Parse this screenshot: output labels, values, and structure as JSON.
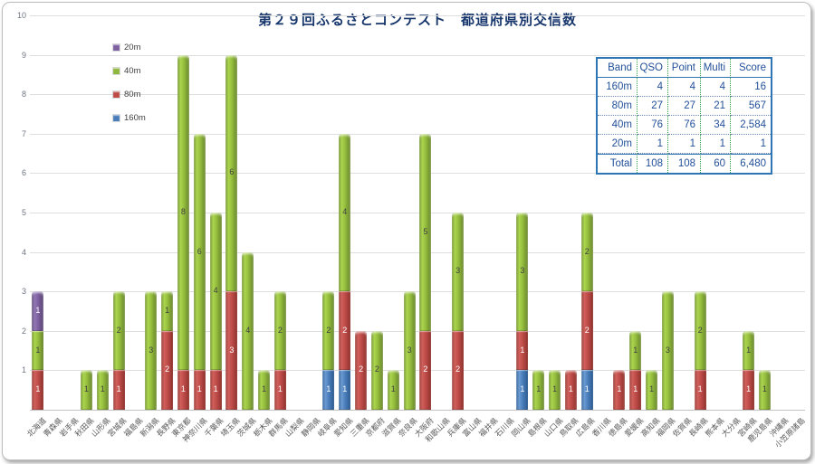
{
  "title": "第２９回ふるさとコンテスト　都道府県別交信数",
  "legend": {
    "position": "top-left",
    "items": [
      {
        "label": "20m",
        "color": "#7d60a0"
      },
      {
        "label": "40m",
        "color": "#8fb73e"
      },
      {
        "label": "80m",
        "color": "#be4b48"
      },
      {
        "label": "160m",
        "color": "#4a7ebb"
      }
    ]
  },
  "summary_table": {
    "headers": [
      "Band",
      "QSO",
      "Point",
      "Multi",
      "Score"
    ],
    "rows": [
      [
        "160m",
        "4",
        "4",
        "4",
        "16"
      ],
      [
        "80m",
        "27",
        "27",
        "21",
        "567"
      ],
      [
        "40m",
        "76",
        "76",
        "34",
        "2,584"
      ],
      [
        "20m",
        "1",
        "1",
        "1",
        "1"
      ],
      [
        "Total",
        "108",
        "108",
        "60",
        "6,480"
      ]
    ]
  },
  "chart_data": {
    "type": "bar",
    "stacked": true,
    "grid": true,
    "ylim": [
      0,
      10
    ],
    "yticks": [
      1,
      2,
      3,
      4,
      5,
      6,
      7,
      8,
      9,
      10
    ],
    "stack_order_bottom_to_top": [
      "160m",
      "80m",
      "40m",
      "20m"
    ],
    "categories": [
      "北海道",
      "青森県",
      "岩手県",
      "秋田県",
      "山形県",
      "宮城県",
      "福島県",
      "新潟県",
      "長野県",
      "東京都",
      "神奈川県",
      "千葉県",
      "埼玉県",
      "茨城県",
      "栃木県",
      "群馬県",
      "山梨県",
      "静岡県",
      "岐阜県",
      "愛知県",
      "三重県",
      "京都府",
      "滋賀県",
      "奈良県",
      "大阪府",
      "和歌山県",
      "兵庫県",
      "富山県",
      "福井県",
      "石川県",
      "岡山県",
      "島根県",
      "山口県",
      "鳥取県",
      "広島県",
      "香川県",
      "徳島県",
      "愛媛県",
      "高知県",
      "福岡県",
      "佐賀県",
      "長崎県",
      "熊本県",
      "大分県",
      "宮崎県",
      "鹿児島県",
      "沖縄県",
      "小笠原諸島"
    ],
    "series": [
      {
        "name": "160m",
        "color": "#4a7ebb",
        "label_color": "#ffffff",
        "values": [
          0,
          0,
          0,
          0,
          0,
          0,
          0,
          0,
          0,
          0,
          0,
          0,
          0,
          0,
          0,
          0,
          0,
          0,
          1,
          1,
          0,
          0,
          0,
          0,
          0,
          0,
          0,
          0,
          0,
          0,
          1,
          0,
          0,
          0,
          1,
          0,
          0,
          0,
          0,
          0,
          0,
          0,
          0,
          0,
          0,
          0,
          0,
          0
        ]
      },
      {
        "name": "80m",
        "color": "#be4b48",
        "label_color": "#ffffff",
        "values": [
          1,
          0,
          0,
          0,
          0,
          1,
          0,
          0,
          2,
          1,
          1,
          1,
          3,
          0,
          0,
          1,
          0,
          0,
          0,
          2,
          2,
          0,
          0,
          0,
          2,
          0,
          2,
          0,
          0,
          0,
          1,
          0,
          0,
          1,
          2,
          0,
          1,
          1,
          0,
          0,
          0,
          1,
          0,
          0,
          1,
          0,
          0,
          0
        ]
      },
      {
        "name": "40m",
        "color": "#8fb73e",
        "label_color": "#404040",
        "values": [
          1,
          0,
          0,
          1,
          1,
          2,
          0,
          3,
          1,
          8,
          6,
          4,
          6,
          4,
          1,
          2,
          0,
          0,
          2,
          4,
          0,
          2,
          1,
          3,
          5,
          0,
          3,
          0,
          0,
          0,
          3,
          1,
          1,
          0,
          2,
          0,
          0,
          1,
          1,
          3,
          0,
          2,
          0,
          0,
          1,
          1,
          0,
          0
        ]
      },
      {
        "name": "20m",
        "color": "#7d60a0",
        "label_color": "#ffffff",
        "values": [
          1,
          0,
          0,
          0,
          0,
          0,
          0,
          0,
          0,
          0,
          0,
          0,
          0,
          0,
          0,
          0,
          0,
          0,
          0,
          0,
          0,
          0,
          0,
          0,
          0,
          0,
          0,
          0,
          0,
          0,
          0,
          0,
          0,
          0,
          0,
          0,
          0,
          0,
          0,
          0,
          0,
          0,
          0,
          0,
          0,
          0,
          0,
          0
        ]
      }
    ]
  }
}
